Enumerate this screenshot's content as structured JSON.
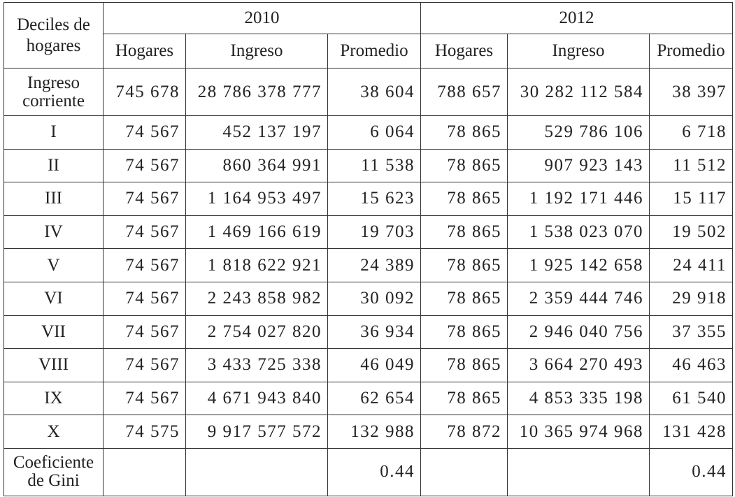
{
  "table": {
    "corner": "Deciles de hogares",
    "years": [
      "2010",
      "2012"
    ],
    "subheaders": [
      "Hogares",
      "Ingreso",
      "Promedio",
      "Hogares",
      "Ingreso",
      "Promedio"
    ],
    "rows": [
      [
        "Ingreso corriente",
        "745 678",
        "28 786 378 777",
        "38 604",
        "788 657",
        "30 282 112 584",
        "38 397"
      ],
      [
        "I",
        "74 567",
        "452 137 197",
        "6 064",
        "78 865",
        "529 786 106",
        "6 718"
      ],
      [
        "II",
        "74 567",
        "860 364 991",
        "11 538",
        "78 865",
        "907 923 143",
        "11 512"
      ],
      [
        "III",
        "74 567",
        "1 164 953 497",
        "15 623",
        "78 865",
        "1 192 171 446",
        "15 117"
      ],
      [
        "IV",
        "74 567",
        "1 469 166 619",
        "19 703",
        "78 865",
        "1 538 023 070",
        "19 502"
      ],
      [
        "V",
        "74 567",
        "1 818 622 921",
        "24 389",
        "78 865",
        "1 925 142 658",
        "24 411"
      ],
      [
        "VI",
        "74 567",
        "2 243 858 982",
        "30 092",
        "78 865",
        "2 359 444 746",
        "29 918"
      ],
      [
        "VII",
        "74 567",
        "2 754 027 820",
        "36 934",
        "78 865",
        "2 946 040 756",
        "37 355"
      ],
      [
        "VIII",
        "74 567",
        "3 433 725 338",
        "46 049",
        "78 865",
        "3 664 270 493",
        "46 463"
      ],
      [
        "IX",
        "74 567",
        "4 671 943 840",
        "62 654",
        "78 865",
        "4 853 335 198",
        "61 540"
      ],
      [
        "X",
        "74 575",
        "9 917 577 572",
        "132 988",
        "78 872",
        "10 365 974 968",
        "131 428"
      ],
      [
        "Coeficiente de Gini",
        null,
        null,
        "0.44",
        null,
        null,
        "0.44"
      ]
    ]
  }
}
